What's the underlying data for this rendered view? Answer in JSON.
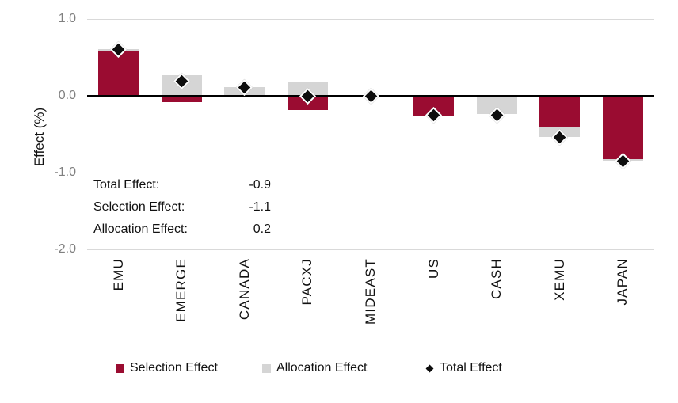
{
  "chart_data": {
    "type": "bar",
    "stacked": true,
    "orientation": "vertical",
    "title": "",
    "xlabel": "",
    "ylabel": "Effect (%)",
    "ylim": [
      -2.0,
      1.0
    ],
    "yticks": [
      1.0,
      0.0,
      -1.0,
      -2.0
    ],
    "ytick_labels": [
      "1.0",
      "0.0",
      "-1.0",
      "-2.0"
    ],
    "grid": true,
    "legend_position": "bottom",
    "categories": [
      "EMU",
      "EMERGE",
      "CANADA",
      "PACXJ",
      "MIDEAST",
      "US",
      "CASH",
      "XEMU",
      "JAPAN"
    ],
    "series": [
      {
        "name": "Selection Effect",
        "color": "#9A0C31",
        "values": [
          0.58,
          -0.08,
          0.0,
          -0.19,
          0.0,
          -0.26,
          0.0,
          -0.4,
          -0.82
        ]
      },
      {
        "name": "Allocation Effect",
        "color": "#D5D5D5",
        "values": [
          0.03,
          0.27,
          0.11,
          0.18,
          0.0,
          0.0,
          -0.24,
          -0.14,
          -0.03
        ]
      }
    ],
    "total_series": {
      "name": "Total Effect",
      "marker": "diamond",
      "color": "#0D0D0D",
      "values": [
        0.6,
        0.19,
        0.11,
        -0.01,
        0.0,
        -0.25,
        -0.25,
        -0.54,
        -0.85
      ]
    }
  },
  "summary": {
    "rows": [
      {
        "label": "Total Effect:",
        "value": "-0.9"
      },
      {
        "label": "Selection Effect:",
        "value": "-1.1"
      },
      {
        "label": "Allocation Effect:",
        "value": "0.2"
      }
    ]
  },
  "legend": {
    "items": [
      {
        "label": "Selection Effect",
        "swatch": "square",
        "color": "#9A0C31"
      },
      {
        "label": "Allocation Effect",
        "swatch": "square",
        "color": "#D5D5D5"
      },
      {
        "label": "Total Effect",
        "swatch": "diamond",
        "color": "#0D0D0D"
      }
    ]
  },
  "colors": {
    "selection": "#9A0C31",
    "allocation": "#D5D5D5",
    "total_marker": "#0D0D0D",
    "gridline": "#D9D9D9",
    "zero_line": "#000000",
    "tick_text": "#808080",
    "text": "#111111",
    "background": "#FFFFFF"
  }
}
